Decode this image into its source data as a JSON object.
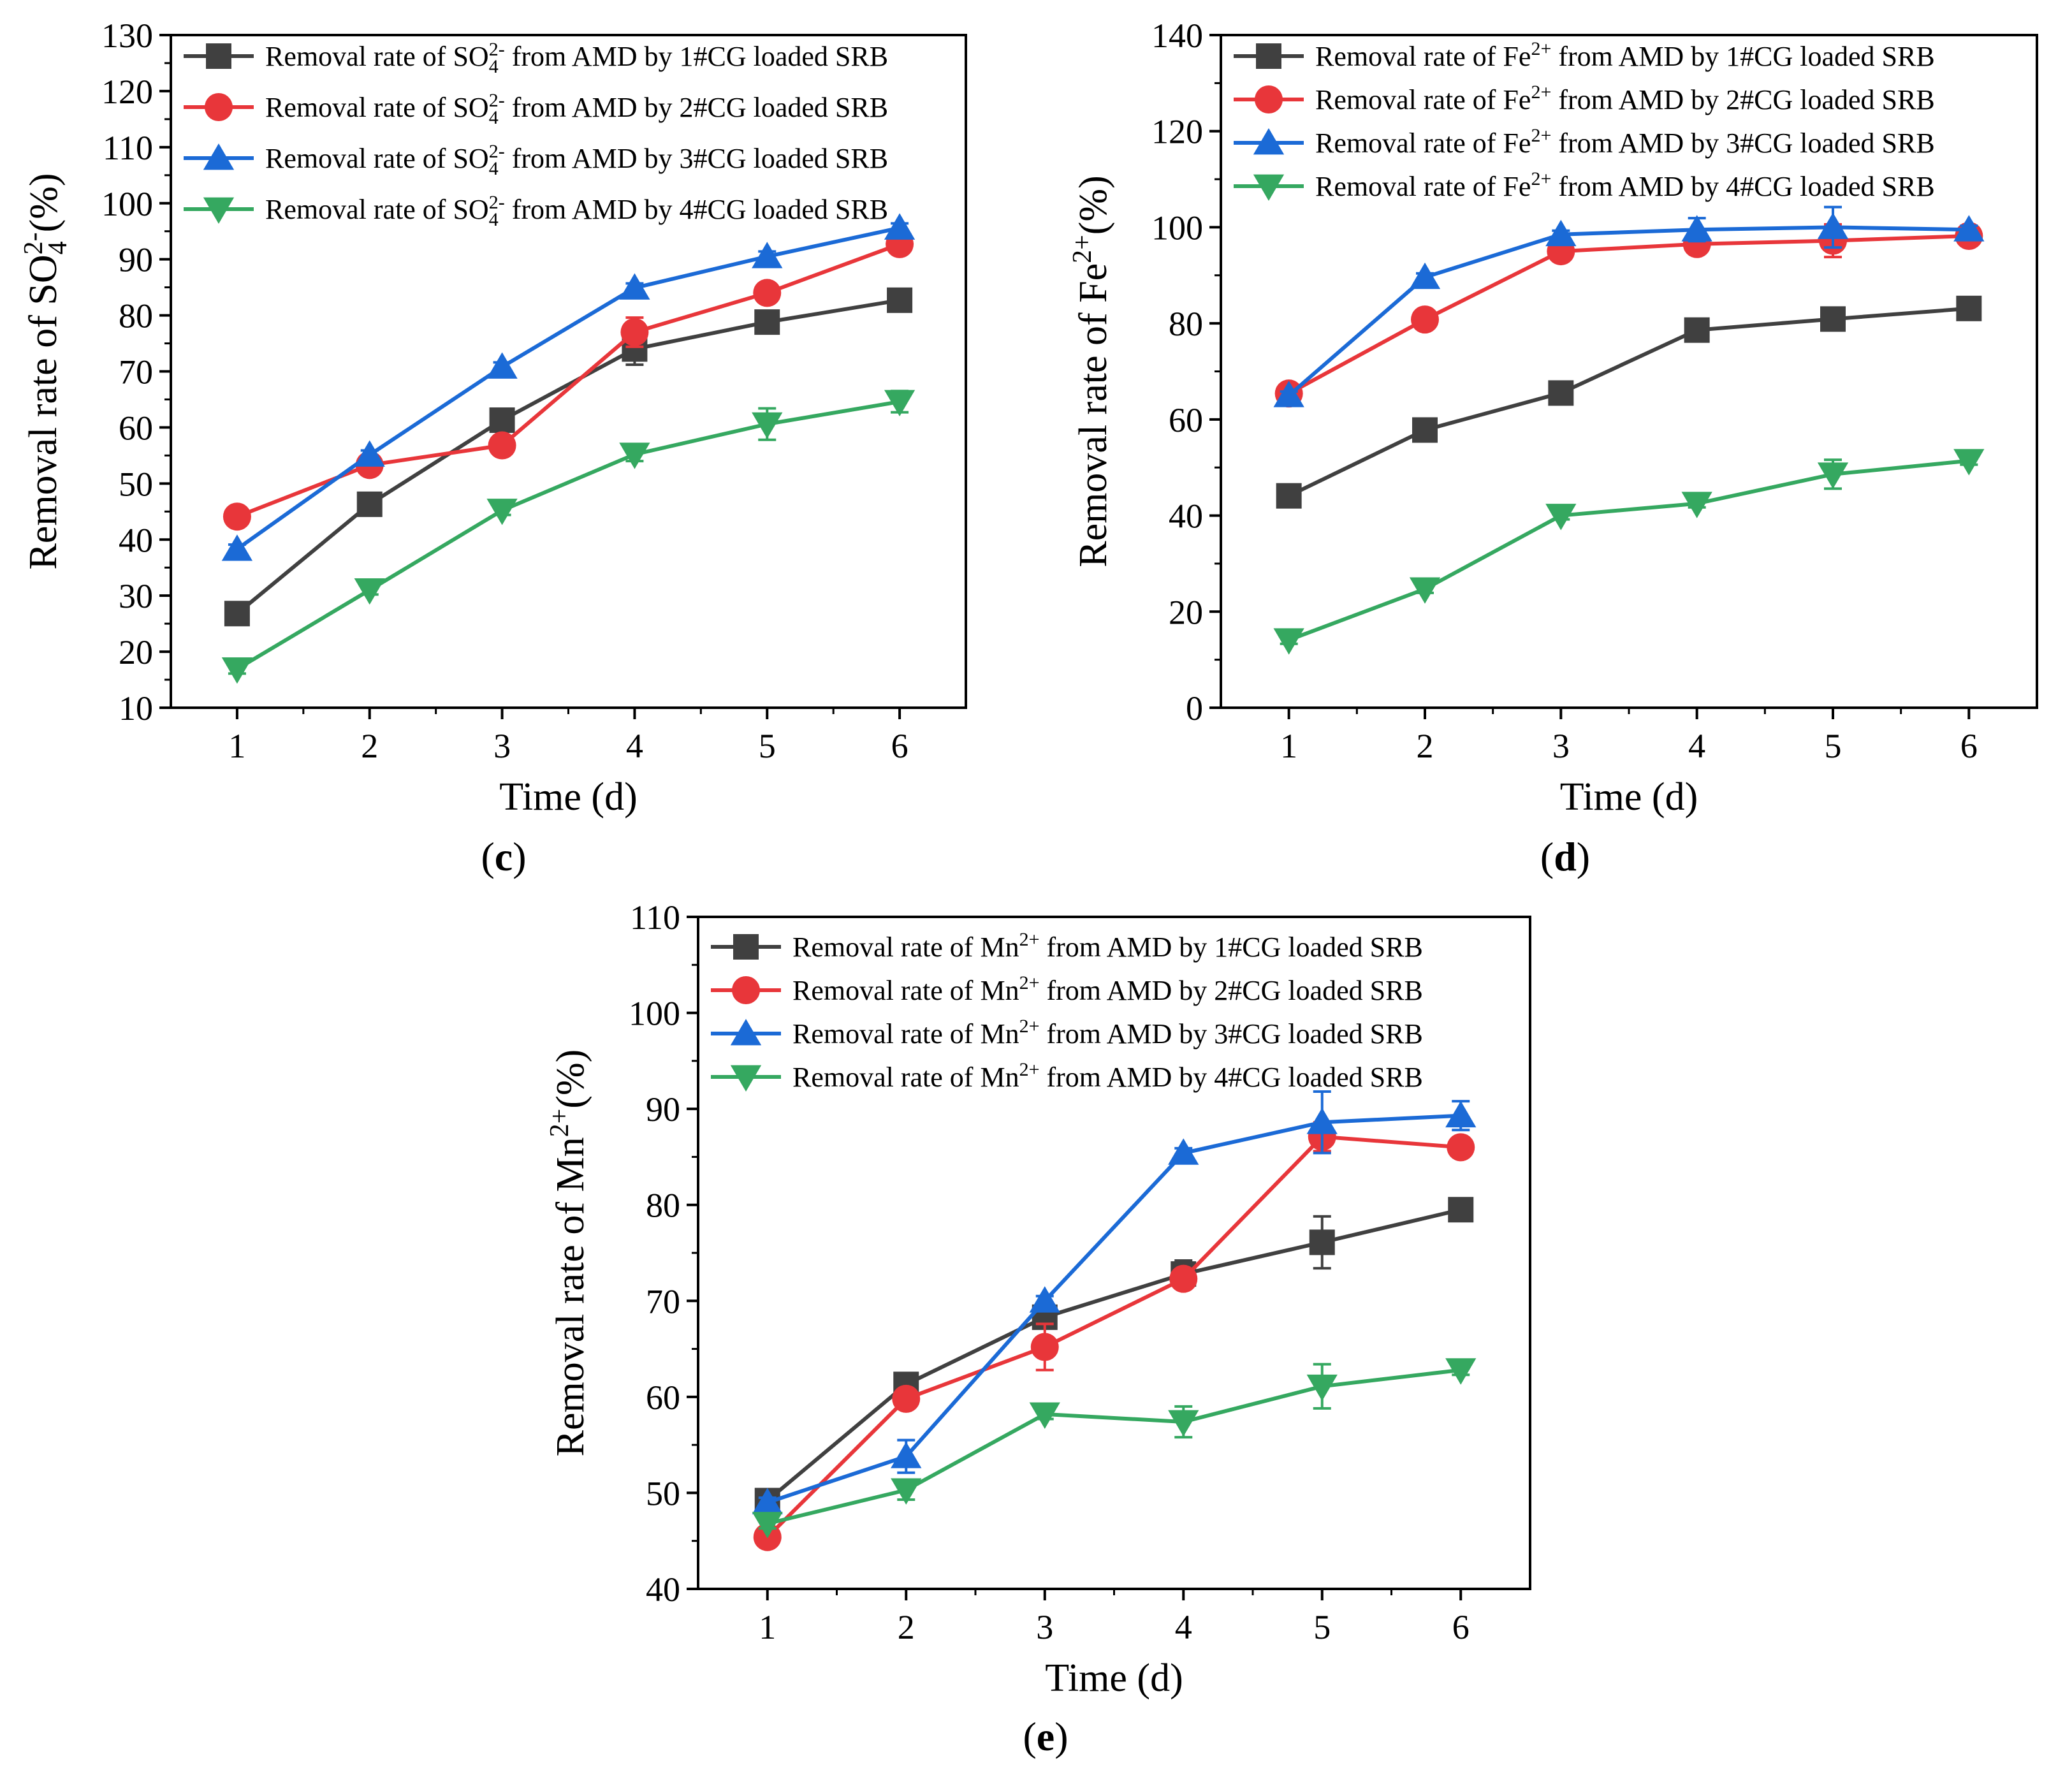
{
  "colors": {
    "s1": "#404040",
    "s2": "#e8363a",
    "s3": "#1b6ad6",
    "s4": "#35a860",
    "axis": "#000000"
  },
  "chart_data": [
    {
      "id": "c",
      "type": "line",
      "panel_label": "c",
      "xlabel": "Time (d)",
      "ylabel": "Removal rate of SO₄²⁻(%)",
      "ylabel_parts": {
        "prefix": "Removal rate of SO",
        "sub": "4",
        "sup": "2-",
        "suffix": "(%)"
      },
      "x": [
        1,
        2,
        3,
        4,
        5,
        6
      ],
      "xlim": [
        0.5,
        6.5
      ],
      "ylim": [
        10,
        130
      ],
      "xticks": [
        1,
        2,
        3,
        4,
        5,
        6
      ],
      "yticks": [
        10,
        20,
        30,
        40,
        50,
        60,
        70,
        80,
        90,
        100,
        110,
        120,
        130
      ],
      "series": [
        {
          "name": "Removal rate of SO₄²⁻ from AMD by 1#CG loaded SRB",
          "label_parts": {
            "prefix": "Removal rate of SO",
            "sub": "4",
            "sup": "2-",
            "suffix": " from AMD by 1#CG loaded SRB"
          },
          "marker": "square",
          "color_key": "s1",
          "values": [
            26.8,
            46.3,
            61.3,
            74.0,
            78.8,
            82.7
          ],
          "errors": [
            0.8,
            0.9,
            1.0,
            2.8,
            0.9,
            1.9
          ]
        },
        {
          "name": "Removal rate of SO₄²⁻ from AMD by 2#CG loaded SRB",
          "label_parts": {
            "prefix": "Removal rate of SO",
            "sub": "4",
            "sup": "2-",
            "suffix": " from AMD by 2#CG loaded SRB"
          },
          "marker": "circle",
          "color_key": "s2",
          "values": [
            44.1,
            53.3,
            56.8,
            77.0,
            84.0,
            92.7
          ],
          "errors": [
            0.8,
            0.9,
            0.8,
            2.6,
            0.9,
            1.6
          ]
        },
        {
          "name": "Removal rate of SO₄²⁻ from AMD by 3#CG loaded SRB",
          "label_parts": {
            "prefix": "Removal rate of SO",
            "sub": "4",
            "sup": "2-",
            "suffix": " from AMD by 3#CG loaded SRB"
          },
          "marker": "triangle-up",
          "color_key": "s3",
          "values": [
            38.3,
            55.1,
            70.8,
            84.9,
            90.5,
            95.6
          ],
          "errors": [
            0.8,
            0.8,
            0.8,
            0.8,
            0.9,
            0.8
          ]
        },
        {
          "name": "Removal rate of SO₄²⁻ from AMD by 4#CG loaded SRB",
          "label_parts": {
            "prefix": "Removal rate of SO",
            "sub": "4",
            "sup": "2-",
            "suffix": " from AMD by 4#CG loaded SRB"
          },
          "marker": "triangle-down",
          "color_key": "s4",
          "values": [
            16.9,
            31.0,
            45.2,
            55.2,
            60.6,
            64.6
          ],
          "errors": [
            0.8,
            0.8,
            0.8,
            1.2,
            2.8,
            1.9
          ]
        }
      ]
    },
    {
      "id": "d",
      "type": "line",
      "panel_label": "d",
      "xlabel": "Time (d)",
      "ylabel": "Removal rate of Fe²⁺(%)",
      "ylabel_parts": {
        "prefix": "Removal rate of Fe",
        "sub": "",
        "sup": "2+",
        "suffix": "(%)"
      },
      "x": [
        1,
        2,
        3,
        4,
        5,
        6
      ],
      "xlim": [
        0.5,
        6.5
      ],
      "ylim": [
        0,
        140
      ],
      "xticks": [
        1,
        2,
        3,
        4,
        5,
        6
      ],
      "yticks": [
        0,
        20,
        40,
        60,
        80,
        100,
        120,
        140
      ],
      "series": [
        {
          "name": "Removal rate of Fe²⁺ from AMD by 1#CG loaded SRB",
          "label_parts": {
            "prefix": "Removal rate of Fe",
            "sub": "",
            "sup": "2+",
            "suffix": " from AMD by 1#CG loaded SRB"
          },
          "marker": "square",
          "color_key": "s1",
          "values": [
            44.1,
            57.8,
            65.5,
            78.6,
            80.9,
            83.1
          ],
          "errors": [
            0.8,
            0.8,
            2.2,
            0.8,
            0.8,
            0.8
          ]
        },
        {
          "name": "Removal rate of Fe²⁺ from AMD by 2#CG loaded SRB",
          "label_parts": {
            "prefix": "Removal rate of Fe",
            "sub": "",
            "sup": "2+",
            "suffix": " from AMD by 2#CG loaded SRB"
          },
          "marker": "circle",
          "color_key": "s2",
          "values": [
            65.4,
            80.8,
            95.0,
            96.5,
            97.2,
            98.2
          ],
          "errors": [
            0.8,
            0.8,
            0.8,
            1.2,
            3.4,
            0.8
          ]
        },
        {
          "name": "Removal rate of Fe²⁺ from AMD by 3#CG loaded SRB",
          "label_parts": {
            "prefix": "Removal rate of Fe",
            "sub": "",
            "sup": "2+",
            "suffix": " from AMD by 3#CG loaded SRB"
          },
          "marker": "triangle-up",
          "color_key": "s3",
          "values": [
            65.0,
            89.6,
            98.5,
            99.5,
            100.0,
            99.5
          ],
          "errors": [
            0.8,
            0.8,
            0.8,
            2.4,
            4.2,
            0.8
          ]
        },
        {
          "name": "Removal rate of Fe²⁺ from AMD by 4#CG loaded SRB",
          "label_parts": {
            "prefix": "Removal rate of Fe",
            "sub": "",
            "sup": "2+",
            "suffix": " from AMD by 4#CG loaded SRB"
          },
          "marker": "triangle-down",
          "color_key": "s4",
          "values": [
            14.1,
            24.7,
            40.0,
            42.5,
            48.6,
            51.4
          ],
          "errors": [
            0.8,
            0.8,
            0.8,
            0.8,
            3.0,
            0.8
          ]
        }
      ]
    },
    {
      "id": "e",
      "type": "line",
      "panel_label": "e",
      "xlabel": "Time (d)",
      "ylabel": "Removal rate of Mn²⁺(%)",
      "ylabel_parts": {
        "prefix": "Removal rate of Mn",
        "sub": "",
        "sup": "2+",
        "suffix": "(%)"
      },
      "x": [
        1,
        2,
        3,
        4,
        5,
        6
      ],
      "xlim": [
        0.5,
        6.5
      ],
      "ylim": [
        40,
        110
      ],
      "xticks": [
        1,
        2,
        3,
        4,
        5,
        6
      ],
      "yticks": [
        40,
        50,
        60,
        70,
        80,
        90,
        100,
        110
      ],
      "series": [
        {
          "name": "Removal rate of Mn²⁺ from AMD by 1#CG loaded SRB",
          "label_parts": {
            "prefix": "Removal rate of Mn",
            "sub": "",
            "sup": "2+",
            "suffix": " from AMD by 1#CG loaded SRB"
          },
          "marker": "square",
          "color_key": "s1",
          "values": [
            49.2,
            61.3,
            68.3,
            72.8,
            76.1,
            79.5
          ],
          "errors": [
            0.5,
            0.5,
            0.8,
            1.4,
            2.7,
            0.7
          ]
        },
        {
          "name": "Removal rate of Mn²⁺ from AMD by 2#CG loaded SRB",
          "label_parts": {
            "prefix": "Removal rate of Mn",
            "sub": "",
            "sup": "2+",
            "suffix": " from AMD by 2#CG loaded SRB"
          },
          "marker": "circle",
          "color_key": "s2",
          "values": [
            45.4,
            59.8,
            65.2,
            72.3,
            87.1,
            86.0
          ],
          "errors": [
            0.5,
            0.5,
            2.4,
            0.5,
            1.5,
            1.0
          ]
        },
        {
          "name": "Removal rate of Mn²⁺ from AMD by 3#CG loaded SRB",
          "label_parts": {
            "prefix": "Removal rate of Mn",
            "sub": "",
            "sup": "2+",
            "suffix": " from AMD by 3#CG loaded SRB"
          },
          "marker": "triangle-up",
          "color_key": "s3",
          "values": [
            49.0,
            53.8,
            70.0,
            85.4,
            88.6,
            89.3
          ],
          "errors": [
            0.5,
            1.7,
            0.5,
            0.5,
            3.2,
            1.5
          ]
        },
        {
          "name": "Removal rate of Mn²⁺ from AMD by 4#CG loaded SRB",
          "label_parts": {
            "prefix": "Removal rate of Mn",
            "sub": "",
            "sup": "2+",
            "suffix": " from AMD by 4#CG loaded SRB"
          },
          "marker": "triangle-down",
          "color_key": "s4",
          "values": [
            46.8,
            50.3,
            58.2,
            57.4,
            61.1,
            62.8
          ],
          "errors": [
            0.5,
            1.0,
            0.5,
            1.6,
            2.3,
            0.5
          ]
        }
      ]
    }
  ]
}
